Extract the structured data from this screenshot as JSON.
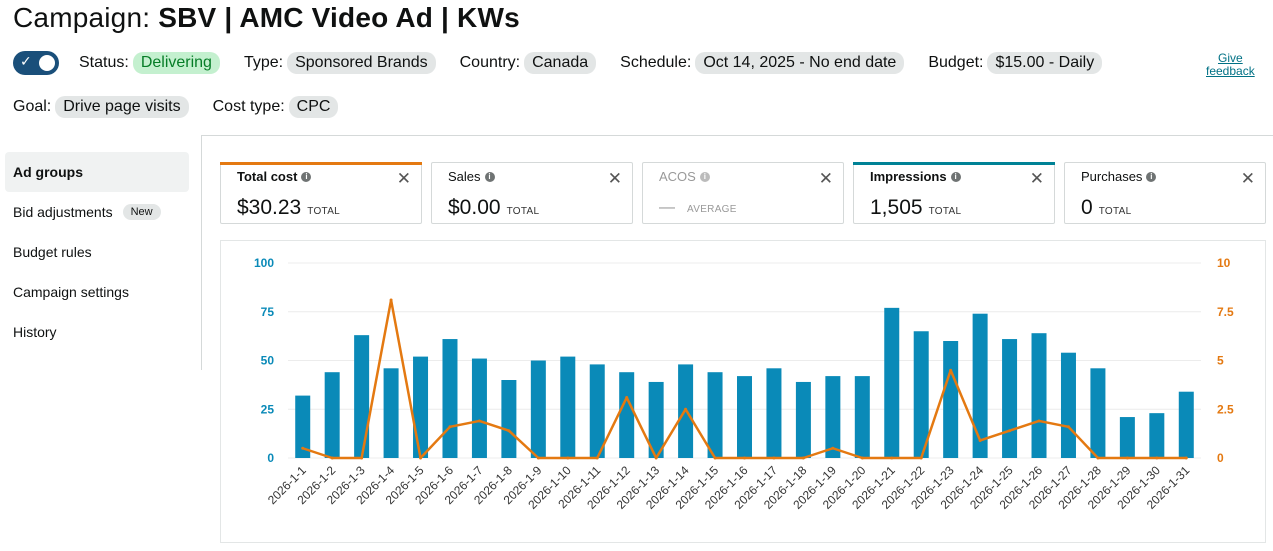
{
  "header": {
    "title_prefix": "Campaign:",
    "title_name": "SBV | AMC Video Ad | KWs"
  },
  "toggle": {
    "check": "✓"
  },
  "meta": {
    "status_label": "Status:",
    "status_value": "Delivering",
    "type_label": "Type:",
    "type_value": "Sponsored Brands",
    "country_label": "Country:",
    "country_value": "Canada",
    "schedule_label": "Schedule:",
    "schedule_value": "Oct 14, 2025 - No end date",
    "budget_label": "Budget:",
    "budget_value": "$15.00 - Daily",
    "goal_label": "Goal:",
    "goal_value": "Drive page visits",
    "cost_type_label": "Cost type:",
    "cost_type_value": "CPC"
  },
  "feedback": {
    "line1": "Give",
    "line2": "feedback"
  },
  "nav": {
    "items": [
      {
        "label": "Ad groups"
      },
      {
        "label": "Bid adjustments",
        "badge": "New"
      },
      {
        "label": "Budget rules"
      },
      {
        "label": "Campaign settings"
      },
      {
        "label": "History"
      }
    ]
  },
  "metrics": [
    {
      "label": "Total cost",
      "value": "$30.23",
      "unit": "TOTAL",
      "accent": "#e47911"
    },
    {
      "label": "Sales",
      "value": "$0.00",
      "unit": "TOTAL"
    },
    {
      "label": "ACOS",
      "value": "—",
      "unit": "AVERAGE",
      "disabled": true
    },
    {
      "label": "Impressions",
      "value": "1,505",
      "unit": "TOTAL",
      "accent": "#008296"
    },
    {
      "label": "Purchases",
      "value": "0",
      "unit": "TOTAL"
    }
  ],
  "icons": {
    "info": "i",
    "close": "✕"
  },
  "colors": {
    "bar_series": "#0a8ab8",
    "line_series": "#e47911"
  },
  "chart_data": {
    "type": "bar",
    "categories": [
      "2026-1-1",
      "2026-1-2",
      "2026-1-3",
      "2026-1-4",
      "2026-1-5",
      "2026-1-6",
      "2026-1-7",
      "2026-1-8",
      "2026-1-9",
      "2026-1-10",
      "2026-1-11",
      "2026-1-12",
      "2026-1-13",
      "2026-1-14",
      "2026-1-15",
      "2026-1-16",
      "2026-1-17",
      "2026-1-18",
      "2026-1-19",
      "2026-1-20",
      "2026-1-21",
      "2026-1-22",
      "2026-1-23",
      "2026-1-24",
      "2026-1-25",
      "2026-1-26",
      "2026-1-27",
      "2026-1-28",
      "2026-1-29",
      "2026-1-30",
      "2026-1-31"
    ],
    "series": [
      {
        "type": "bar",
        "axis": "left",
        "values": [
          32,
          44,
          63,
          46,
          52,
          61,
          51,
          40,
          50,
          52,
          48,
          44,
          39,
          48,
          44,
          42,
          46,
          39,
          42,
          42,
          77,
          65,
          60,
          74,
          61,
          64,
          54,
          46,
          21,
          23,
          34
        ]
      },
      {
        "type": "line",
        "axis": "right",
        "values": [
          0.5,
          0,
          0,
          8.1,
          0,
          1.6,
          1.9,
          1.4,
          0,
          0,
          0,
          3.1,
          0,
          2.5,
          0,
          0,
          0,
          0,
          0.5,
          0,
          0,
          0,
          4.5,
          0.9,
          1.4,
          1.9,
          1.6,
          0,
          0,
          0,
          0
        ]
      }
    ],
    "left_ticks": [
      "0",
      "25",
      "50",
      "75",
      "100"
    ],
    "right_ticks": [
      "0",
      "2.5",
      "5",
      "7.5",
      "10"
    ],
    "ylim_left": [
      0,
      100
    ],
    "ylim_right": [
      0,
      10
    ],
    "grid": true
  }
}
